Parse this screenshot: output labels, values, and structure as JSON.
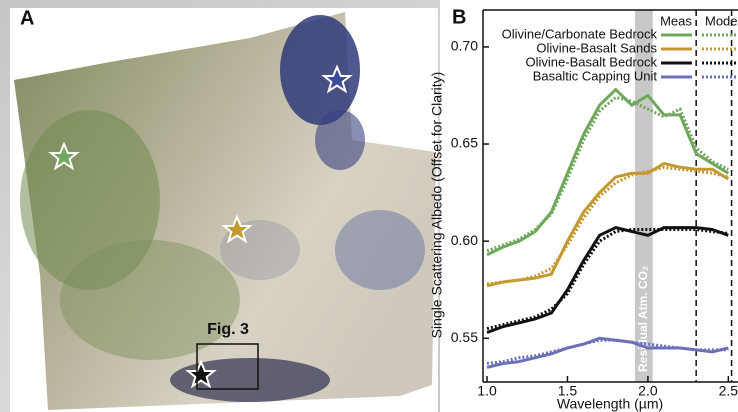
{
  "panel_a": {
    "label": "A",
    "box_label": "Fig. 3"
  },
  "chart_data": {
    "type": "line",
    "panel_label": "B",
    "xlabel": "Wavelength (µm)",
    "ylabel": "Single Scattering Albedo (Offset for Clarity)",
    "legend_headers": [
      "Meas",
      "Model"
    ],
    "annotation": "Residual Atm. CO₂",
    "shaded_band": [
      1.92,
      2.03
    ],
    "reference_lines": [
      2.3,
      2.52
    ],
    "xlim": [
      0.975,
      2.56
    ],
    "ylim": [
      0.5275,
      0.719
    ],
    "xticks": [
      {
        "value": 1,
        "label": "1.0"
      },
      1.5,
      {
        "value": 2,
        "label": "2.0"
      },
      2.5
    ],
    "yticks": [
      {
        "value": 0.55,
        "label": "0.55"
      },
      {
        "value": 0.6,
        "label": "0.60"
      },
      {
        "value": 0.65,
        "label": "0.65"
      },
      {
        "value": 0.7,
        "label": "0.70"
      }
    ],
    "x": [
      1.0,
      1.1,
      1.2,
      1.3,
      1.4,
      1.5,
      1.6,
      1.7,
      1.8,
      1.9,
      2.0,
      2.1,
      2.2,
      2.3,
      2.4,
      2.5
    ],
    "series": [
      {
        "name": "Olivine/Carbonate Bedrock",
        "color": "#6fa85a",
        "values": [
          0.593,
          0.597,
          0.6,
          0.605,
          0.615,
          0.635,
          0.655,
          0.67,
          0.678,
          0.67,
          0.675,
          0.665,
          0.665,
          0.645,
          0.64,
          0.635
        ],
        "model": [
          0.595,
          0.598,
          0.601,
          0.606,
          0.614,
          0.632,
          0.652,
          0.667,
          0.674,
          0.672,
          0.668,
          0.664,
          0.668,
          0.648,
          0.641,
          0.637
        ]
      },
      {
        "name": "Olivine-Basalt Sands",
        "color": "#c49a30",
        "values": [
          0.577,
          0.579,
          0.58,
          0.581,
          0.583,
          0.6,
          0.615,
          0.625,
          0.633,
          0.635,
          0.635,
          0.64,
          0.638,
          0.637,
          0.637,
          0.632
        ],
        "model": [
          0.578,
          0.579,
          0.58,
          0.582,
          0.586,
          0.598,
          0.612,
          0.623,
          0.63,
          0.634,
          0.636,
          0.638,
          0.637,
          0.636,
          0.635,
          0.633
        ]
      },
      {
        "name": "Olivine-Basalt Bedrock",
        "color": "#111111",
        "values": [
          0.553,
          0.556,
          0.558,
          0.56,
          0.563,
          0.575,
          0.59,
          0.603,
          0.607,
          0.605,
          0.603,
          0.607,
          0.607,
          0.607,
          0.606,
          0.603
        ],
        "model": [
          0.555,
          0.557,
          0.559,
          0.561,
          0.565,
          0.573,
          0.588,
          0.6,
          0.605,
          0.606,
          0.606,
          0.606,
          0.606,
          0.606,
          0.605,
          0.604
        ]
      },
      {
        "name": "Basaltic Capping Unit",
        "color": "#6c70b8",
        "values": [
          0.535,
          0.537,
          0.538,
          0.54,
          0.542,
          0.545,
          0.547,
          0.55,
          0.549,
          0.548,
          0.545,
          0.545,
          0.545,
          0.544,
          0.543,
          0.545
        ],
        "model": [
          0.537,
          0.538,
          0.54,
          0.541,
          0.543,
          0.545,
          0.547,
          0.549,
          0.549,
          0.548,
          0.547,
          0.546,
          0.545,
          0.544,
          0.544,
          0.544
        ]
      }
    ]
  }
}
